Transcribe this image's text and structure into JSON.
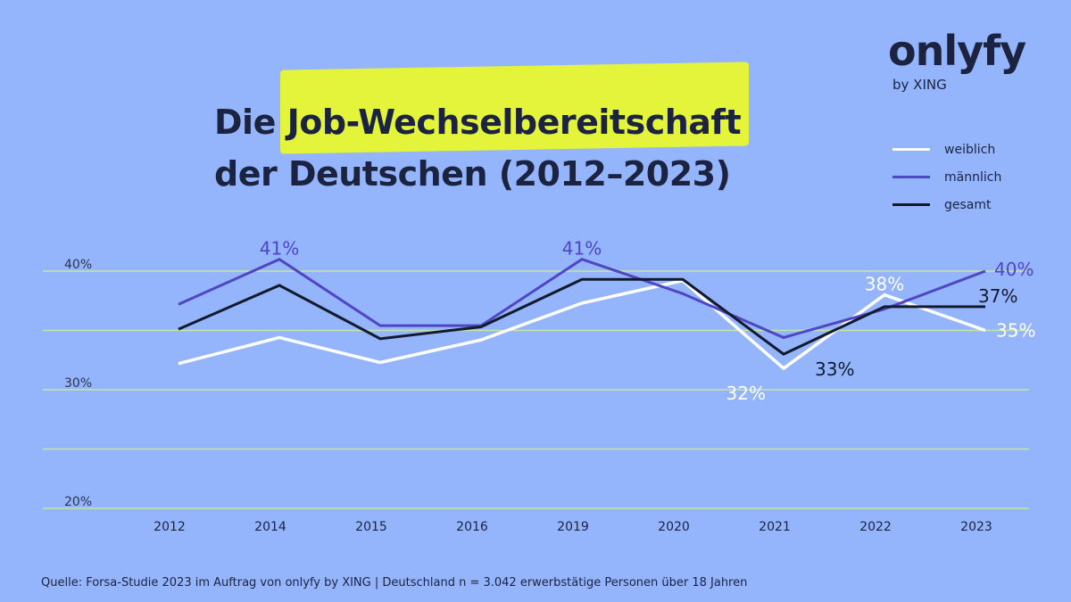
{
  "logo": {
    "name": "onlyfy",
    "sub": "by XING"
  },
  "chart_data": {
    "type": "line",
    "title_pre": "Die ",
    "title_highlight": "Job-Wechselbereitschaft",
    "title_line2": "der Deutschen (2012–2023)",
    "categories": [
      "2012",
      "2014",
      "2015",
      "2016",
      "2019",
      "2020",
      "2021",
      "2022",
      "2023"
    ],
    "ylim": [
      20,
      40
    ],
    "yticks": [
      {
        "v": 40,
        "label": "40%"
      },
      {
        "v": 35,
        "label": ""
      },
      {
        "v": 30,
        "label": "30%"
      },
      {
        "v": 25,
        "label": ""
      },
      {
        "v": 20,
        "label": "20%"
      }
    ],
    "grid": true,
    "legend_position": "top-right",
    "series": [
      {
        "name": "weiblich",
        "color": "#ffffff",
        "values": [
          32.2,
          34.4,
          32.3,
          34.2,
          37.3,
          39.2,
          31.8,
          38,
          35
        ]
      },
      {
        "name": "männlich",
        "color": "#4f46c4",
        "values": [
          37.2,
          41,
          35.4,
          35.4,
          41,
          38.1,
          34.4,
          36.8,
          40
        ]
      },
      {
        "name": "gesamt",
        "color": "#141a2e",
        "values": [
          35.1,
          38.8,
          34.3,
          35.3,
          39.3,
          39.3,
          33,
          37,
          37
        ]
      }
    ],
    "annotations": [
      {
        "series": 1,
        "index": 1,
        "text": "41%",
        "pos": "above"
      },
      {
        "series": 1,
        "index": 4,
        "text": "41%",
        "pos": "above"
      },
      {
        "series": 1,
        "index": 8,
        "text": "40%",
        "pos": "right-up"
      },
      {
        "series": 2,
        "index": 8,
        "text": "37%",
        "pos": "right-mid"
      },
      {
        "series": 0,
        "index": 8,
        "text": "35%",
        "pos": "right-down"
      },
      {
        "series": 0,
        "index": 7,
        "text": "38%",
        "pos": "above"
      },
      {
        "series": 0,
        "index": 6,
        "text": "32%",
        "pos": "left-below"
      },
      {
        "series": 2,
        "index": 6,
        "text": "33%",
        "pos": "right-below"
      }
    ]
  },
  "footer": "Quelle: Forsa-Studie 2023 im Auftrag von onlyfy by XING | Deutschland n = 3.042 erwerbstätige Personen über 18 Jahren"
}
